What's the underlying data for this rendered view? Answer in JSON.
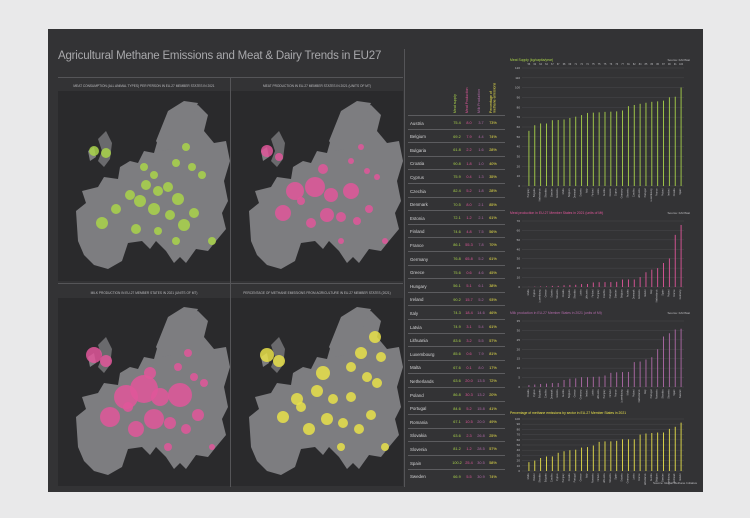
{
  "page": {
    "title": "Agricultural Methane Emissions and Meat & Dairy Trends in EU27"
  },
  "colors": {
    "green": "#a9d34a",
    "pink": "#e0569a",
    "violet": "#b06aa8",
    "yellow": "#e8e04a",
    "background": "#333335",
    "land": "#7d7d80",
    "sea": "#2a2a2c"
  },
  "maps": [
    {
      "title": "MEAT CONSUMPTION (ALL ANIMAL TYPES) PER PERSON IN EU-27 MEMBER STATES IN 2021",
      "color": "#a9d34a"
    },
    {
      "title": "MEAT PRODUCTION IN EU-27 MEMBER STATES IN 2021 (UNITS OF MT)",
      "color": "#e0569a"
    },
    {
      "title": "MILK PRODUCTION IN EU-27 MEMBER STATES IN 2021 (UNITS OF MT)",
      "color": "#e0569a"
    },
    {
      "title": "PERCENTAGE OF METHANE EMISSIONS FROM AGRICULTURE IN EU-27 MEMBER STATES (2021)",
      "color": "#e8e04a"
    }
  ],
  "table": {
    "headers": [
      "Meat supply",
      "Meat Production",
      "Milk Production",
      "Percentage of methane emissions"
    ],
    "header_colors": [
      "#a9d34a",
      "#e0569a",
      "#b06aa8",
      "#e8e04a"
    ],
    "rows": [
      {
        "country": "Austria",
        "values": [
          "75.4",
          "8.0",
          "3.7",
          "73%"
        ]
      },
      {
        "country": "Belgium",
        "values": [
          "69.2",
          "7.9",
          "4.4",
          "74%"
        ]
      },
      {
        "country": "Bulgaria",
        "values": [
          "61.8",
          "2.2",
          "1.6",
          "28%"
        ]
      },
      {
        "country": "Croatia",
        "values": [
          "90.8",
          "1.8",
          "1.0",
          "40%"
        ]
      },
      {
        "country": "Cyprus",
        "values": [
          "75.9",
          "0.4",
          "1.3",
          "35%"
        ]
      },
      {
        "country": "Czechia",
        "values": [
          "82.4",
          "5.2",
          "1.8",
          "28%"
        ]
      },
      {
        "country": "Denmark",
        "values": [
          "70.5",
          "8.0",
          "2.1",
          "85%"
        ]
      },
      {
        "country": "Estonia",
        "values": [
          "72.1",
          "1.2",
          "2.1",
          "61%"
        ]
      },
      {
        "country": "Finland",
        "values": [
          "74.6",
          "4.8",
          "7.5",
          "56%"
        ]
      },
      {
        "country": "France",
        "values": [
          "86.1",
          "55.3",
          "7.8",
          "70%"
        ]
      },
      {
        "country": "Germany",
        "values": [
          "76.8",
          "65.8",
          "5.2",
          "61%"
        ]
      },
      {
        "country": "Greece",
        "values": [
          "75.6",
          "0.6",
          "4.6",
          "45%"
        ]
      },
      {
        "country": "Hungary",
        "values": [
          "56.1",
          "5.1",
          "6.1",
          "38%"
        ]
      },
      {
        "country": "Ireland",
        "values": [
          "90.2",
          "15.7",
          "5.2",
          "93%"
        ]
      },
      {
        "country": "Italy",
        "values": [
          "74.3",
          "18.4",
          "14.6",
          "46%"
        ]
      },
      {
        "country": "Latvia",
        "values": [
          "74.9",
          "3.1",
          "5.4",
          "61%"
        ]
      },
      {
        "country": "Lithuania",
        "values": [
          "83.6",
          "3.2",
          "5.5",
          "57%"
        ]
      },
      {
        "country": "Luxembourg",
        "values": [
          "85.6",
          "0.6",
          "7.9",
          "81%"
        ]
      },
      {
        "country": "Malta",
        "values": [
          "67.6",
          "0.1",
          "8.0",
          "17%"
        ]
      },
      {
        "country": "Netherlands",
        "values": [
          "63.6",
          "20.0",
          "13.5",
          "72%"
        ]
      },
      {
        "country": "Poland",
        "values": [
          "86.8",
          "30.3",
          "13.2",
          "20%"
        ]
      },
      {
        "country": "Portugal",
        "values": [
          "84.6",
          "5.2",
          "15.8",
          "41%"
        ]
      },
      {
        "country": "Romania",
        "values": [
          "67.1",
          "10.5",
          "20.0",
          "49%"
        ]
      },
      {
        "country": "Slovakia",
        "values": [
          "63.6",
          "2.3",
          "26.8",
          "25%"
        ]
      },
      {
        "country": "Slovenia",
        "values": [
          "81.2",
          "1.2",
          "28.5",
          "57%"
        ]
      },
      {
        "country": "Spain",
        "values": [
          "100.2",
          "25.4",
          "30.5",
          "58%"
        ]
      },
      {
        "country": "Sweden",
        "values": [
          "66.9",
          "5.5",
          "30.9",
          "74%"
        ]
      }
    ]
  },
  "chart_data": [
    {
      "type": "bar",
      "title": "Meat Supply (kg/capita/year)",
      "source": "Source: FAOStat",
      "color": "#a9d34a",
      "ylim": [
        0,
        120
      ],
      "yticks": [
        "0",
        "10",
        "20",
        "30",
        "40",
        "50",
        "60",
        "70",
        "80",
        "90",
        "100",
        "110",
        "120"
      ],
      "categories": [
        "Hungary",
        "Bulgaria",
        "Netherlands",
        "Slovakia",
        "Sweden",
        "Romania",
        "Malta",
        "Belgium",
        "Denmark",
        "Estonia",
        "Italy",
        "Finland",
        "Latvia",
        "Austria",
        "Greece",
        "Cyprus",
        "Germany",
        "Slovenia",
        "Czechia",
        "Lithuania",
        "Portugal",
        "Luxembourg",
        "France",
        "Poland",
        "Ireland",
        "Croatia",
        "Spain"
      ],
      "values": [
        56.1,
        61.8,
        63.6,
        63.6,
        66.9,
        67.1,
        67.6,
        69.2,
        70.5,
        72.1,
        74.3,
        74.6,
        74.9,
        75.4,
        75.6,
        75.9,
        76.8,
        81.2,
        82.4,
        83.6,
        84.6,
        85.6,
        86.1,
        86.8,
        90.2,
        90.8,
        100.2
      ],
      "data_labels": [
        "56",
        "62",
        "64",
        "64",
        "67",
        "67",
        "68",
        "69",
        "71",
        "72",
        "74",
        "75",
        "75",
        "75",
        "76",
        "76",
        "77",
        "81",
        "82",
        "84",
        "85",
        "86",
        "86",
        "87",
        "90",
        "91",
        "100"
      ]
    },
    {
      "type": "bar",
      "title": "Meat production in EU-27 Member States in 2021 (units of Mt)",
      "source": "Source: FAOStat",
      "color": "#e0569a",
      "ylim": [
        0,
        70
      ],
      "yticks": [
        "0",
        "10",
        "20",
        "30",
        "40",
        "50",
        "60",
        "70"
      ],
      "categories": [
        "Malta",
        "Cyprus",
        "Luxembourg",
        "Greece",
        "Estonia",
        "Slovenia",
        "Croatia",
        "Bulgaria",
        "Slovakia",
        "Latvia",
        "Lithuania",
        "Finland",
        "Hungary",
        "Czechia",
        "Portugal",
        "Sweden",
        "Belgium",
        "Austria",
        "Denmark",
        "Romania",
        "Ireland",
        "Italy",
        "Netherlands",
        "Spain",
        "Poland",
        "France",
        "Germany"
      ],
      "values": [
        0.1,
        0.4,
        0.6,
        0.6,
        1.2,
        1.2,
        1.8,
        2.2,
        2.3,
        3.1,
        3.2,
        4.8,
        5.1,
        5.2,
        5.2,
        5.5,
        7.9,
        8.0,
        8.0,
        10.5,
        15.7,
        18.4,
        20.0,
        25.4,
        30.3,
        55.3,
        65.8
      ]
    },
    {
      "type": "bar",
      "title": "Milk production in EU-27 Member States in 2021 (units of Mt)",
      "source": "Source: FAOStat",
      "color": "#b06aa8",
      "ylim": [
        0,
        35
      ],
      "yticks": [
        "0",
        "5",
        "10",
        "15",
        "20",
        "25",
        "30",
        "35"
      ],
      "categories": [
        "Croatia",
        "Cyprus",
        "Bulgaria",
        "Czechia",
        "Denmark",
        "Estonia",
        "Austria",
        "Belgium",
        "Greece",
        "Germany",
        "Ireland",
        "Latvia",
        "Lithuania",
        "Hungary",
        "Finland",
        "France",
        "Luxembourg",
        "Malta",
        "Poland",
        "Netherlands",
        "Italy",
        "Portugal",
        "Romania",
        "Slovakia",
        "Slovenia",
        "Spain",
        "Sweden"
      ],
      "values": [
        1.0,
        1.3,
        1.6,
        1.8,
        2.1,
        2.1,
        3.7,
        4.4,
        4.6,
        5.2,
        5.2,
        5.4,
        5.5,
        6.1,
        7.5,
        7.8,
        7.9,
        8.0,
        13.2,
        13.5,
        14.6,
        15.8,
        20.0,
        26.8,
        28.5,
        30.5,
        30.9
      ]
    },
    {
      "type": "bar",
      "title": "Percentage of methane emissions by sector in EU-27 Member States in 2021",
      "source": "Source: Global Methane Initiative",
      "color": "#e8e04a",
      "ylim": [
        0,
        100
      ],
      "yticks": [
        "0",
        "10",
        "20",
        "30",
        "40",
        "50",
        "60",
        "70",
        "80",
        "90",
        "100"
      ],
      "categories": [
        "Malta",
        "Poland",
        "Slovakia",
        "Bulgaria",
        "Czechia",
        "Cyprus",
        "Hungary",
        "Croatia",
        "Portugal",
        "Greece",
        "Italy",
        "Romania",
        "Finland",
        "Lithuania",
        "Slovenia",
        "Spain",
        "Estonia",
        "Germany",
        "Latvia",
        "France",
        "Netherlands",
        "Austria",
        "Belgium",
        "Sweden",
        "Luxembourg",
        "Denmark",
        "Ireland"
      ],
      "values": [
        17,
        20,
        25,
        28,
        28,
        35,
        38,
        40,
        41,
        45,
        46,
        49,
        56,
        57,
        57,
        58,
        61,
        61,
        61,
        70,
        72,
        73,
        74,
        74,
        81,
        85,
        93
      ]
    }
  ]
}
